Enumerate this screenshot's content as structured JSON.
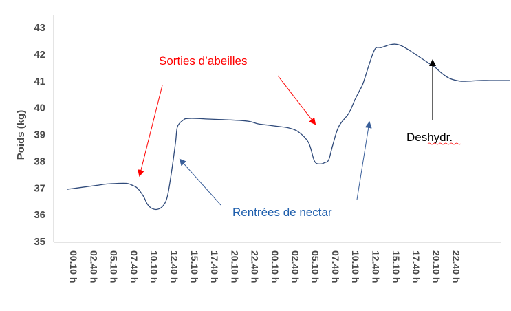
{
  "chart_data": {
    "type": "line",
    "ylabel": "Poids (kg)",
    "xlabel": "",
    "ylim": [
      35,
      43
    ],
    "yticks": [
      35,
      36,
      37,
      38,
      39,
      40,
      41,
      42,
      43
    ],
    "grid": false,
    "categories": [
      "00.10 h",
      "02.40 h",
      "05.10 h",
      "07.40 h",
      "10.10 h",
      "12.40 h",
      "15.10 h",
      "17.40 h",
      "20.10 h",
      "22.40 h",
      "00.10 h",
      "02.40 h",
      "05.10 h",
      "07.40 h",
      "10.10 h",
      "12.40 h",
      "15.10 h",
      "17.40 h",
      "20.10 h",
      "22.40 h"
    ],
    "series": [
      {
        "color": "#2f4a7a",
        "x": [
          0,
          0.5,
          1,
          1.5,
          2,
          2.5,
          3,
          3.2,
          3.5,
          3.8,
          4,
          4.2,
          4.5,
          4.8,
          5,
          5.2,
          5.4,
          5.5,
          5.8,
          6,
          6.5,
          7,
          8,
          9,
          9.5,
          10,
          10.5,
          11,
          11.5,
          12,
          12.3,
          12.6,
          12.8,
          13,
          13.2,
          13.5,
          14,
          14.3,
          14.5,
          14.7,
          15,
          15.3,
          15.6,
          15.8,
          16,
          16.3,
          16.6,
          17,
          17.5,
          18,
          18.3,
          18.6,
          19,
          19.5,
          20,
          20.5,
          21,
          21.5,
          22
        ],
        "values": [
          36.95,
          37.0,
          37.05,
          37.1,
          37.15,
          37.17,
          37.17,
          37.12,
          37.0,
          36.7,
          36.4,
          36.25,
          36.2,
          36.35,
          36.7,
          37.6,
          38.7,
          39.3,
          39.55,
          39.6,
          39.6,
          39.58,
          39.55,
          39.5,
          39.4,
          39.35,
          39.3,
          39.25,
          39.1,
          38.7,
          38.0,
          37.9,
          37.95,
          38.05,
          38.6,
          39.3,
          39.8,
          40.3,
          40.6,
          40.9,
          41.6,
          42.2,
          42.25,
          42.3,
          42.35,
          42.38,
          42.32,
          42.15,
          41.9,
          41.65,
          41.5,
          41.3,
          41.1,
          41.0,
          41.0,
          41.02,
          41.02,
          41.02,
          41.02
        ]
      }
    ],
    "annotations": [
      {
        "text": "Sorties d’abeilles",
        "color": "#ff0000"
      },
      {
        "text": "Rentrées de nectar",
        "color": "#1f5fad"
      },
      {
        "text": "Deshydr.",
        "color": "#000000"
      }
    ]
  }
}
